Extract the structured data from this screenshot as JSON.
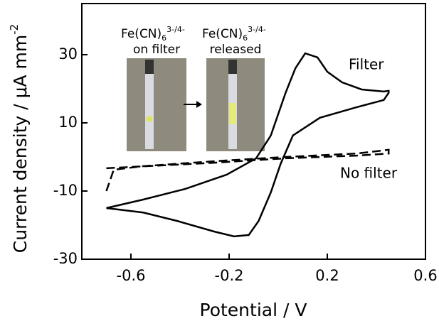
{
  "chart_data": {
    "type": "line",
    "xlabel": "Potential / V",
    "ylabel": "Current density / μA mm",
    "ylabel_superscript": "-2",
    "xlim": [
      -0.8,
      0.6
    ],
    "ylim": [
      -30,
      45
    ],
    "xticks": [
      -0.6,
      -0.2,
      0.2,
      0.6
    ],
    "yticks": [
      -30,
      -10,
      10,
      30
    ],
    "grid": false,
    "annotations": {
      "left_formula": "Fe(CN)",
      "left_subscript": "6",
      "left_superscript": "3-/4-",
      "left_caption": "on filter",
      "right_formula": "Fe(CN)",
      "right_subscript": "6",
      "right_superscript": "3-/4-",
      "right_caption": "released"
    },
    "series": [
      {
        "name": "Filter",
        "color": "#000000",
        "linestyle": "solid",
        "x": [
          -0.7,
          -0.55,
          -0.38,
          -0.21,
          -0.09,
          -0.03,
          0.03,
          0.07,
          0.11,
          0.16,
          0.2,
          0.26,
          0.34,
          0.43,
          0.45,
          0.45,
          0.43,
          0.32,
          0.17,
          0.06,
          0.01,
          -0.03,
          -0.08,
          -0.12,
          -0.18,
          -0.26,
          -0.41,
          -0.55,
          -0.7
        ],
        "values": [
          -15,
          -12.5,
          -9.4,
          -5.2,
          -0.4,
          6.3,
          18.8,
          26,
          30.4,
          29.2,
          25,
          21.9,
          19.8,
          19.2,
          19.4,
          18.8,
          16.7,
          14.6,
          11.5,
          6.3,
          -2,
          -10.4,
          -18.8,
          -22.9,
          -23.3,
          -21.9,
          -18.8,
          -16.3,
          -15
        ]
      },
      {
        "name": "No filter",
        "color": "#000000",
        "linestyle": "dashed",
        "x": [
          -0.7,
          -0.67,
          -0.55,
          -0.26,
          0.03,
          0.32,
          0.45,
          0.45,
          0.32,
          0.03,
          -0.26,
          -0.7
        ],
        "values": [
          -10,
          -3.75,
          -2.7,
          -1.25,
          0,
          1,
          2.1,
          1,
          0.4,
          -0.4,
          -1.7,
          -3.3
        ]
      }
    ]
  }
}
